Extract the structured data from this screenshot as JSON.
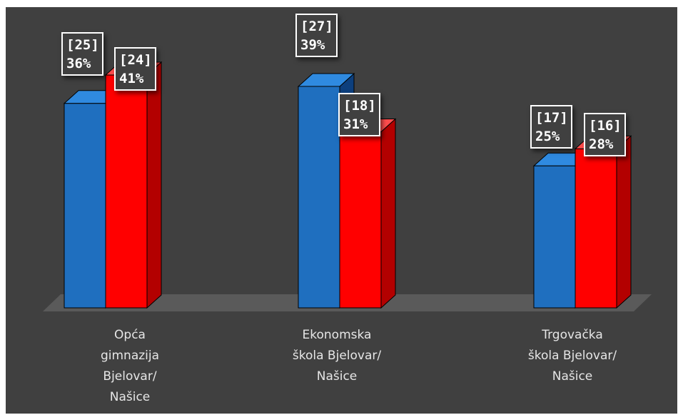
{
  "chart_data": {
    "type": "bar",
    "categories": [
      "Opća\ngimnazija\nBjelovar/\nNašice",
      "Ekonomska\nškola Bjelovar/\nNašice",
      "Trgovačka\nškola Bjelovar/\nNašice"
    ],
    "series": [
      {
        "values": [
          36,
          39,
          25
        ],
        "counts": [
          25,
          27,
          17
        ],
        "color": "#1f6fbf"
      },
      {
        "values": [
          41,
          31,
          28
        ],
        "counts": [
          24,
          18,
          16
        ],
        "color": "#ff0000"
      }
    ],
    "data_labels": [
      [
        "[25]\n36%",
        "[27]\n39%",
        "[17]\n25%"
      ],
      [
        "[24]\n41%",
        "[18]\n31%",
        "[16]\n28%"
      ]
    ],
    "style": "3d-column",
    "background": "#404040",
    "grid": false,
    "legend": "none"
  }
}
